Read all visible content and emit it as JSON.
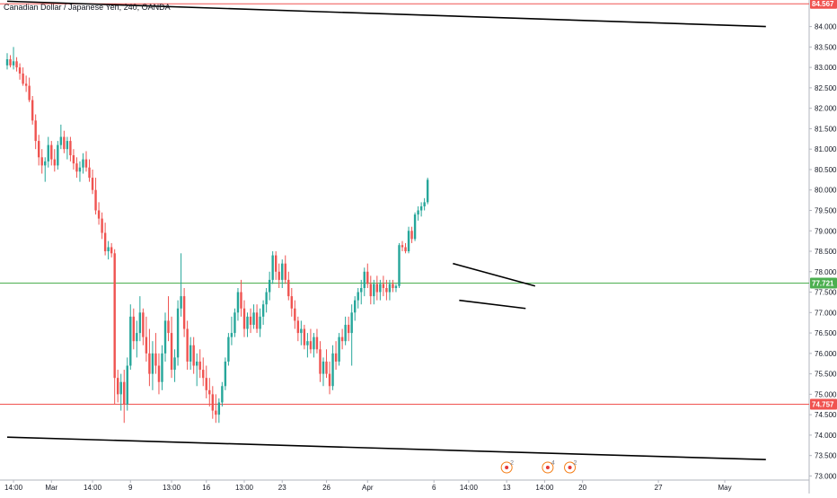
{
  "header": {
    "symbol_title": "Canadian Dollar / Japanese Yen, 240, OANDA"
  },
  "colors": {
    "up": "#26a69a",
    "down": "#ef5350",
    "projection": "#000000",
    "resistance": "#f05350",
    "price_line": "#4caf50",
    "axis_text": "#131722",
    "grid_axis": "#b2b5be"
  },
  "chart_data": {
    "type": "candlestick",
    "y_axis": {
      "ticks": [
        "73.000",
        "73.500",
        "74.000",
        "74.500",
        "75.000",
        "75.500",
        "76.000",
        "76.500",
        "77.000",
        "77.500",
        "78.000",
        "78.500",
        "79.000",
        "79.500",
        "80.000",
        "80.500",
        "81.000",
        "81.500",
        "82.000",
        "82.500",
        "83.000",
        "83.500",
        "84.000"
      ],
      "top_label": "84.567",
      "ylim": [
        72.9,
        84.65
      ]
    },
    "x_axis": {
      "ticks": [
        {
          "i": 2,
          "label": "14:00"
        },
        {
          "i": 14,
          "label": "Mar"
        },
        {
          "i": 27,
          "label": "14:00"
        },
        {
          "i": 39,
          "label": "9"
        },
        {
          "i": 52,
          "label": "13:00"
        },
        {
          "i": 63,
          "label": "16"
        },
        {
          "i": 75,
          "label": "13:00"
        },
        {
          "i": 87,
          "label": "23"
        },
        {
          "i": 101,
          "label": "26"
        },
        {
          "i": 114,
          "label": "Apr"
        },
        {
          "i": 135,
          "label": "6"
        },
        {
          "i": 146,
          "label": "14:00"
        },
        {
          "i": 158,
          "label": "13"
        },
        {
          "i": 170,
          "label": "14:00"
        },
        {
          "i": 182,
          "label": "20"
        },
        {
          "i": 206,
          "label": "27"
        },
        {
          "i": 227,
          "label": "May"
        }
      ]
    },
    "levels": [
      {
        "name": "support",
        "value": 74.757,
        "label": "74.757"
      },
      {
        "name": "current_price",
        "value": 77.721,
        "label": "77.721"
      }
    ],
    "trendlines": [
      {
        "name": "upper-channel",
        "i1": 0,
        "p1": 84.62,
        "i2": 240,
        "p2": 84.0
      },
      {
        "name": "lower-channel",
        "i1": 0,
        "p1": 73.95,
        "i2": 240,
        "p2": 73.4
      },
      {
        "name": "pennant-top",
        "i1": 141,
        "p1": 78.2,
        "i2": 167,
        "p2": 77.65
      },
      {
        "name": "pennant-bottom",
        "i1": 143,
        "p1": 77.3,
        "i2": 164,
        "p2": 77.1
      }
    ],
    "events": [
      {
        "i": 158,
        "count": "2"
      },
      {
        "i": 171,
        "count": "4"
      },
      {
        "i": 178,
        "count": "2"
      }
    ],
    "candles": [
      [
        83.05,
        83.35,
        82.95,
        83.2
      ],
      [
        83.2,
        83.3,
        83.0,
        83.05
      ],
      [
        83.05,
        83.5,
        82.95,
        83.15
      ],
      [
        83.15,
        83.25,
        82.9,
        83.0
      ],
      [
        83.0,
        83.1,
        82.7,
        82.85
      ],
      [
        82.85,
        83.0,
        82.55,
        82.6
      ],
      [
        82.6,
        82.8,
        82.4,
        82.55
      ],
      [
        82.55,
        82.75,
        82.15,
        82.2
      ],
      [
        82.2,
        82.3,
        81.6,
        81.7
      ],
      [
        81.7,
        81.85,
        81.0,
        81.2
      ],
      [
        81.2,
        81.35,
        80.6,
        80.8
      ],
      [
        80.8,
        81.0,
        80.4,
        80.6
      ],
      [
        80.6,
        80.8,
        80.2,
        80.7
      ],
      [
        80.7,
        81.3,
        80.55,
        81.1
      ],
      [
        81.1,
        81.2,
        80.6,
        80.75
      ],
      [
        80.75,
        81.0,
        80.45,
        80.6
      ],
      [
        80.6,
        81.2,
        80.5,
        81.1
      ],
      [
        81.1,
        81.6,
        81.0,
        81.3
      ],
      [
        81.3,
        81.45,
        80.9,
        81.0
      ],
      [
        81.0,
        81.3,
        80.75,
        81.2
      ],
      [
        81.2,
        81.3,
        80.7,
        80.85
      ],
      [
        80.85,
        81.0,
        80.5,
        80.65
      ],
      [
        80.65,
        80.8,
        80.3,
        80.45
      ],
      [
        80.45,
        80.7,
        80.2,
        80.55
      ],
      [
        80.55,
        80.9,
        80.4,
        80.75
      ],
      [
        80.75,
        80.95,
        80.45,
        80.55
      ],
      [
        80.55,
        80.75,
        80.2,
        80.3
      ],
      [
        80.3,
        80.5,
        79.9,
        80.0
      ],
      [
        80.0,
        80.3,
        79.4,
        79.5
      ],
      [
        79.5,
        79.7,
        79.15,
        79.3
      ],
      [
        79.3,
        79.45,
        78.8,
        78.95
      ],
      [
        78.95,
        79.2,
        78.4,
        78.5
      ],
      [
        78.5,
        78.75,
        78.3,
        78.6
      ],
      [
        78.6,
        78.7,
        78.35,
        78.45
      ],
      [
        78.45,
        78.55,
        74.75,
        75.4
      ],
      [
        75.4,
        75.6,
        74.8,
        75.0
      ],
      [
        75.0,
        75.5,
        74.6,
        75.3
      ],
      [
        75.3,
        75.6,
        74.3,
        74.75
      ],
      [
        74.75,
        75.9,
        74.6,
        75.7
      ],
      [
        75.7,
        77.2,
        75.6,
        76.9
      ],
      [
        76.9,
        77.1,
        76.1,
        76.3
      ],
      [
        76.3,
        76.8,
        75.9,
        76.5
      ],
      [
        76.5,
        77.4,
        76.3,
        77.0
      ],
      [
        77.0,
        77.1,
        76.2,
        76.4
      ],
      [
        76.4,
        76.9,
        75.8,
        76.0
      ],
      [
        76.0,
        76.6,
        75.2,
        75.5
      ],
      [
        75.5,
        76.3,
        75.1,
        76.0
      ],
      [
        76.0,
        76.5,
        75.5,
        75.7
      ],
      [
        75.7,
        76.0,
        75.0,
        75.3
      ],
      [
        75.3,
        76.2,
        75.1,
        76.0
      ],
      [
        76.0,
        77.0,
        75.8,
        76.8
      ],
      [
        76.8,
        77.4,
        76.3,
        76.5
      ],
      [
        76.5,
        76.9,
        75.4,
        75.6
      ],
      [
        75.6,
        76.1,
        75.3,
        75.9
      ],
      [
        75.9,
        77.3,
        75.7,
        77.1
      ],
      [
        77.1,
        78.45,
        76.9,
        77.4
      ],
      [
        77.4,
        77.6,
        76.4,
        76.6
      ],
      [
        76.6,
        76.8,
        75.6,
        75.8
      ],
      [
        75.8,
        76.4,
        75.6,
        76.2
      ],
      [
        76.2,
        76.4,
        75.5,
        75.7
      ],
      [
        75.7,
        76.0,
        75.2,
        75.8
      ],
      [
        75.8,
        76.1,
        75.4,
        75.6
      ],
      [
        75.6,
        75.9,
        75.2,
        75.4
      ],
      [
        75.4,
        75.7,
        74.9,
        75.1
      ],
      [
        75.1,
        75.4,
        74.7,
        75.0
      ],
      [
        75.0,
        75.2,
        74.4,
        74.6
      ],
      [
        74.6,
        75.0,
        74.3,
        74.5
      ],
      [
        74.5,
        74.9,
        74.3,
        74.8
      ],
      [
        74.8,
        75.3,
        74.7,
        75.2
      ],
      [
        75.2,
        75.9,
        75.1,
        75.8
      ],
      [
        75.8,
        76.5,
        75.7,
        76.4
      ],
      [
        76.4,
        76.9,
        76.2,
        76.5
      ],
      [
        76.5,
        77.1,
        76.4,
        77.0
      ],
      [
        77.0,
        77.6,
        76.8,
        77.5
      ],
      [
        77.5,
        77.8,
        76.9,
        77.1
      ],
      [
        77.1,
        77.3,
        76.4,
        76.6
      ],
      [
        76.6,
        77.0,
        76.4,
        76.9
      ],
      [
        76.9,
        77.1,
        76.5,
        76.7
      ],
      [
        76.7,
        77.2,
        76.6,
        77.0
      ],
      [
        77.0,
        77.2,
        76.5,
        76.6
      ],
      [
        76.6,
        77.1,
        76.4,
        76.9
      ],
      [
        76.9,
        77.3,
        76.7,
        77.2
      ],
      [
        77.2,
        77.6,
        77.0,
        77.5
      ],
      [
        77.5,
        78.0,
        77.3,
        77.8
      ],
      [
        77.8,
        78.5,
        77.7,
        78.4
      ],
      [
        78.4,
        78.5,
        77.8,
        78.0
      ],
      [
        78.0,
        78.2,
        77.6,
        77.8
      ],
      [
        77.8,
        78.3,
        77.6,
        78.2
      ],
      [
        78.2,
        78.4,
        77.7,
        77.8
      ],
      [
        77.8,
        78.0,
        77.3,
        77.4
      ],
      [
        77.4,
        77.6,
        76.9,
        77.1
      ],
      [
        77.1,
        77.3,
        76.6,
        76.8
      ],
      [
        76.8,
        76.9,
        76.3,
        76.5
      ],
      [
        76.5,
        76.8,
        76.2,
        76.6
      ],
      [
        76.6,
        76.7,
        76.1,
        76.2
      ],
      [
        76.2,
        76.5,
        75.9,
        76.3
      ],
      [
        76.3,
        76.6,
        76.0,
        76.1
      ],
      [
        76.1,
        76.5,
        75.9,
        76.4
      ],
      [
        76.4,
        76.6,
        76.0,
        76.1
      ],
      [
        76.1,
        76.3,
        75.3,
        75.5
      ],
      [
        75.5,
        75.9,
        75.2,
        75.8
      ],
      [
        75.8,
        76.1,
        75.4,
        75.5
      ],
      [
        75.5,
        75.8,
        75.0,
        75.2
      ],
      [
        75.2,
        76.2,
        75.1,
        76.0
      ],
      [
        76.0,
        76.3,
        75.6,
        75.8
      ],
      [
        75.8,
        76.5,
        75.7,
        76.4
      ],
      [
        76.4,
        76.6,
        76.1,
        76.3
      ],
      [
        76.3,
        76.9,
        76.2,
        76.7
      ],
      [
        76.7,
        76.9,
        76.3,
        76.5
      ],
      [
        76.5,
        77.2,
        75.7,
        77.0
      ],
      [
        77.0,
        77.4,
        76.8,
        77.3
      ],
      [
        77.3,
        77.6,
        77.1,
        77.5
      ],
      [
        77.5,
        77.8,
        77.2,
        77.6
      ],
      [
        77.6,
        78.1,
        77.4,
        78.0
      ],
      [
        78.0,
        78.2,
        77.6,
        77.7
      ],
      [
        77.7,
        77.9,
        77.2,
        77.4
      ],
      [
        77.4,
        77.8,
        77.2,
        77.7
      ],
      [
        77.7,
        77.9,
        77.3,
        77.5
      ],
      [
        77.5,
        77.8,
        77.3,
        77.7
      ],
      [
        77.7,
        77.9,
        77.4,
        77.6
      ],
      [
        77.6,
        77.8,
        77.3,
        77.5
      ],
      [
        77.5,
        77.8,
        77.3,
        77.7
      ],
      [
        77.7,
        77.8,
        77.5,
        77.6
      ],
      [
        77.6,
        77.7,
        77.5,
        77.65
      ],
      [
        77.65,
        78.7,
        77.6,
        78.65
      ],
      [
        78.65,
        78.75,
        78.5,
        78.6
      ],
      [
        78.6,
        78.7,
        78.45,
        78.5
      ],
      [
        78.5,
        79.1,
        78.45,
        79.0
      ],
      [
        79.0,
        79.1,
        78.7,
        78.8
      ],
      [
        78.8,
        79.45,
        78.75,
        79.4
      ],
      [
        79.4,
        79.6,
        79.25,
        79.5
      ],
      [
        79.5,
        79.7,
        79.35,
        79.6
      ],
      [
        79.6,
        79.8,
        79.5,
        79.7
      ],
      [
        79.7,
        80.3,
        79.65,
        80.25
      ]
    ]
  }
}
